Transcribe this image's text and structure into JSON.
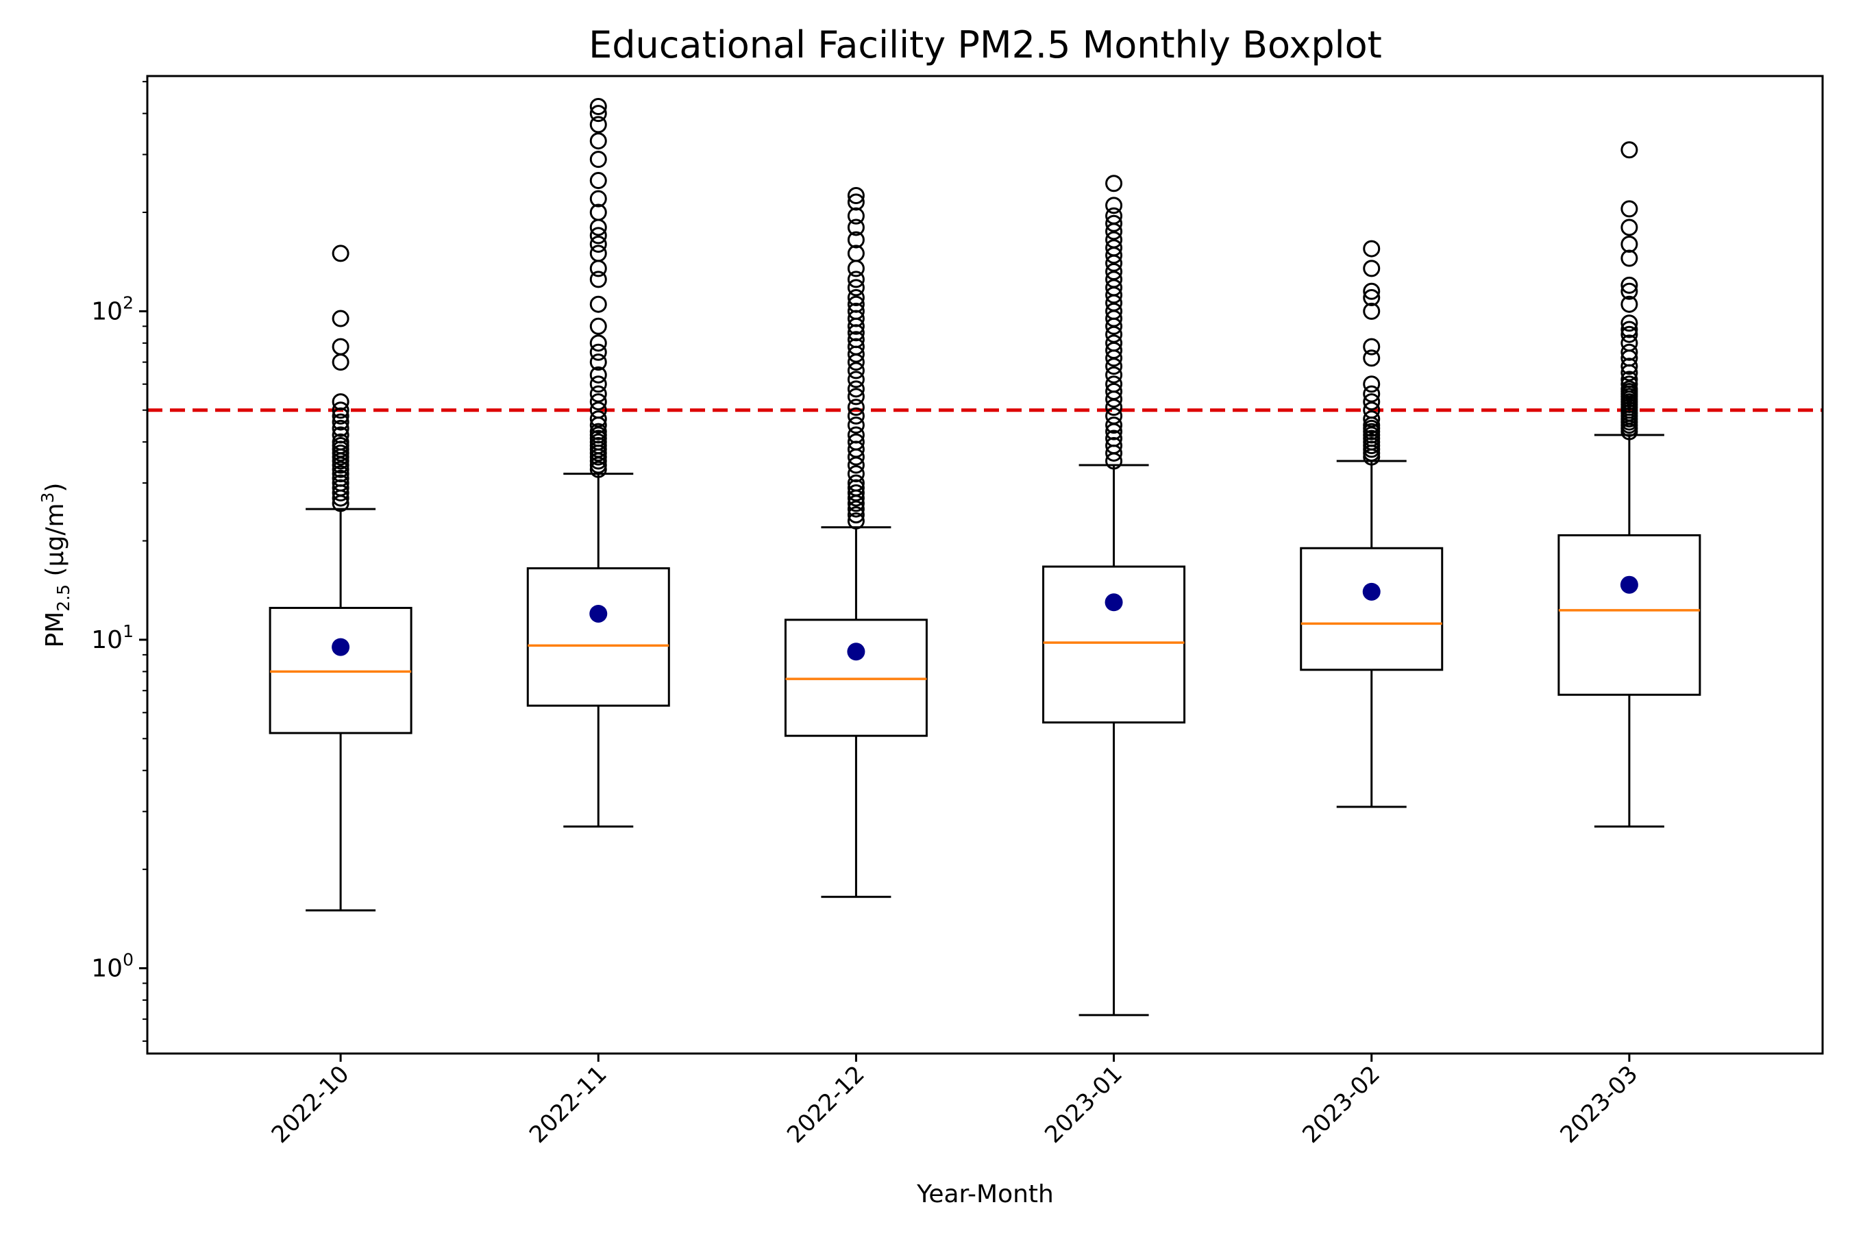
{
  "chart_data": {
    "type": "boxplot",
    "title": "Educational Facility PM2.5 Monthly Boxplot",
    "xlabel": "Year-Month",
    "ylabel": "PM",
    "ylabel_sub": "2.5",
    "ylabel_unit": " (µg/m",
    "ylabel_sup": "3",
    "ylabel_close": ")",
    "y_scale": "log",
    "ylim": [
      0.55,
      520
    ],
    "y_ticks": [
      {
        "base": "10",
        "exp": "0",
        "value": 1
      },
      {
        "base": "10",
        "exp": "1",
        "value": 10
      },
      {
        "base": "10",
        "exp": "2",
        "value": 100
      }
    ],
    "reference_line": {
      "value": 50,
      "color": "#dd0000",
      "style": "dashed"
    },
    "colors": {
      "box": "#000000",
      "median": "#ff7f0e",
      "mean": "#00008b",
      "flier": "#000000"
    },
    "categories": [
      "2022-10",
      "2022-11",
      "2022-12",
      "2023-01",
      "2023-02",
      "2023-03"
    ],
    "boxes": [
      {
        "label": "2022-10",
        "whislo": 1.5,
        "q1": 5.2,
        "median": 8.0,
        "q3": 12.5,
        "whishi": 25,
        "mean": 9.5,
        "fliers": [
          26,
          27,
          28,
          29,
          30,
          31,
          32,
          33,
          34,
          35,
          36,
          37,
          38,
          39,
          40,
          42,
          44,
          46,
          48,
          50,
          53,
          70,
          78,
          95,
          150
        ]
      },
      {
        "label": "2022-11",
        "whislo": 2.7,
        "q1": 6.3,
        "median": 9.6,
        "q3": 16.5,
        "whishi": 32,
        "mean": 12.0,
        "fliers": [
          33,
          34,
          35,
          36,
          37,
          38,
          39,
          40,
          41,
          42,
          43,
          45,
          47,
          50,
          53,
          56,
          60,
          64,
          70,
          75,
          80,
          90,
          105,
          125,
          135,
          150,
          160,
          170,
          180,
          200,
          220,
          250,
          290,
          330,
          370,
          400,
          420
        ]
      },
      {
        "label": "2022-12",
        "whislo": 1.65,
        "q1": 5.1,
        "median": 7.6,
        "q3": 11.5,
        "whishi": 22,
        "mean": 9.2,
        "fliers": [
          23,
          24,
          25,
          26,
          27,
          28,
          29,
          30,
          32,
          34,
          36,
          38,
          40,
          42,
          45,
          48,
          51,
          55,
          58,
          62,
          66,
          70,
          74,
          78,
          82,
          86,
          90,
          95,
          100,
          105,
          110,
          118,
          125,
          135,
          150,
          165,
          180,
          195,
          215,
          225
        ]
      },
      {
        "label": "2023-01",
        "whislo": 0.72,
        "q1": 5.6,
        "median": 9.8,
        "q3": 16.7,
        "whishi": 34,
        "mean": 13.0,
        "fliers": [
          35,
          37,
          39,
          41,
          43,
          45,
          48,
          51,
          54,
          57,
          60,
          64,
          68,
          72,
          76,
          80,
          85,
          90,
          95,
          100,
          106,
          112,
          118,
          125,
          132,
          140,
          148,
          156,
          165,
          175,
          185,
          195,
          210,
          245
        ]
      },
      {
        "label": "2023-02",
        "whislo": 3.1,
        "q1": 8.1,
        "median": 11.2,
        "q3": 19.0,
        "whishi": 35,
        "mean": 14.0,
        "fliers": [
          36,
          37,
          38,
          39,
          40,
          41,
          42,
          43,
          44,
          45,
          47,
          50,
          53,
          56,
          60,
          72,
          78,
          100,
          110,
          115,
          135,
          155
        ]
      },
      {
        "label": "2023-03",
        "whislo": 2.7,
        "q1": 6.8,
        "median": 12.3,
        "q3": 20.8,
        "whishi": 42,
        "mean": 14.7,
        "fliers": [
          43,
          44,
          45,
          46,
          47,
          48,
          49,
          50,
          51,
          52,
          53,
          54,
          55,
          56,
          57,
          58,
          60,
          62,
          65,
          68,
          72,
          75,
          80,
          85,
          88,
          92,
          105,
          115,
          120,
          145,
          160,
          180,
          205,
          310
        ]
      }
    ]
  }
}
